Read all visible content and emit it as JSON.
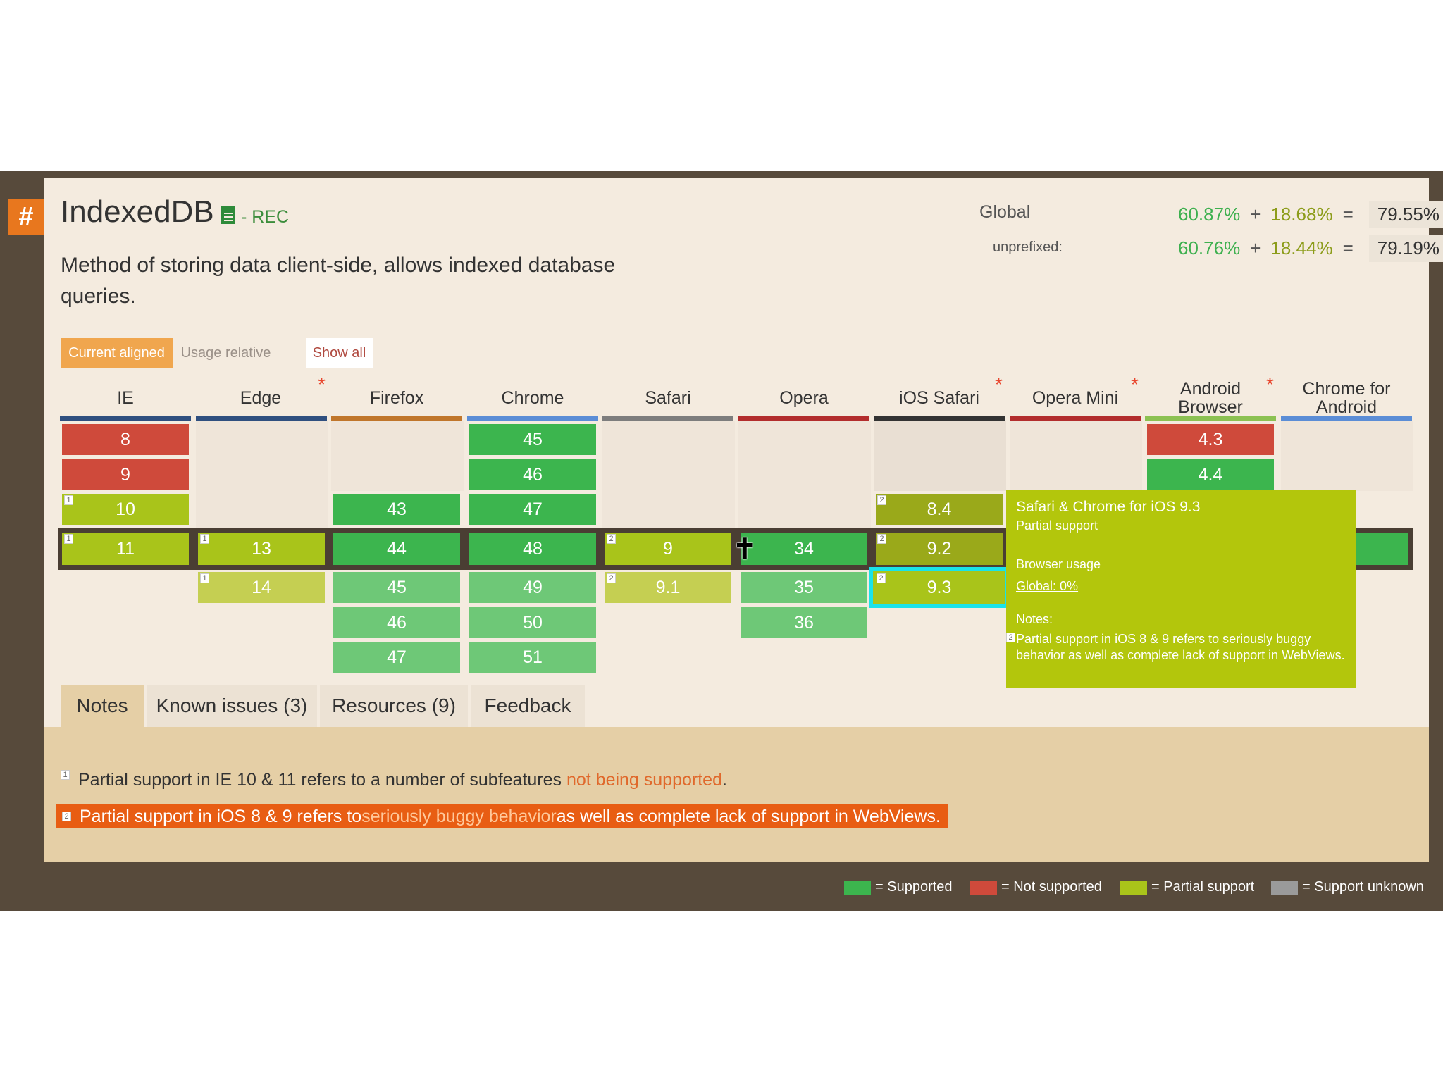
{
  "feature": {
    "anchor": "#",
    "title": "IndexedDB",
    "spec_status": "- REC",
    "description": "Method of storing data client-side, allows indexed database queries."
  },
  "usage": {
    "global_label": "Global",
    "global_supported": "60.87%",
    "global_partial": "18.68%",
    "global_total": "79.55%",
    "unprefixed_label": "unprefixed:",
    "unprefixed_supported": "60.76%",
    "unprefixed_partial": "18.44%",
    "unprefixed_total": "79.19%",
    "plus": "+",
    "equals": "="
  },
  "view_buttons": {
    "current_aligned": "Current aligned",
    "usage_relative": "Usage relative",
    "show_all": "Show all"
  },
  "browsers": [
    {
      "name": "IE",
      "color": "#2f4f7f"
    },
    {
      "name": "Edge",
      "color": "#2f4f7f",
      "star": "*"
    },
    {
      "name": "Firefox",
      "color": "#c0762b"
    },
    {
      "name": "Chrome",
      "color": "#5b8dd6"
    },
    {
      "name": "Safari",
      "color": "#7d7d7d"
    },
    {
      "name": "Opera",
      "color": "#b32d2d"
    },
    {
      "name": "iOS Safari",
      "color": "#333333",
      "star": "*"
    },
    {
      "name": "Opera Mini",
      "color": "#b32d2d",
      "star": "*"
    },
    {
      "name": "Android Browser",
      "color": "#8cc152",
      "star": "*"
    },
    {
      "name": "Chrome for Android",
      "color": "#5b8dd6"
    }
  ],
  "versions": {
    "ie": [
      "8",
      "9",
      "10",
      "11"
    ],
    "edge": [
      "13",
      "14"
    ],
    "firefox": [
      "43",
      "44",
      "45",
      "46",
      "47"
    ],
    "chrome": [
      "45",
      "46",
      "47",
      "48",
      "49",
      "50",
      "51"
    ],
    "safari": [
      "9",
      "9.1"
    ],
    "opera": [
      "34",
      "35",
      "36"
    ],
    "ios": [
      "8.4",
      "9.2",
      "9.3"
    ],
    "android": [
      "4.3",
      "4.4"
    ]
  },
  "footnote_marks": {
    "one": "1",
    "two": "2"
  },
  "tooltip": {
    "title": "Safari & Chrome for iOS 9.3",
    "status": "Partial support",
    "usage_heading": "Browser usage",
    "global_usage": "Global: 0%",
    "notes_heading": "Notes:",
    "note": "Partial support in iOS 8 & 9 refers to seriously buggy behavior as well as complete lack of support in WebViews."
  },
  "tabs": [
    "Notes",
    "Known issues (3)",
    "Resources (9)",
    "Feedback"
  ],
  "notes": {
    "note1_text": "Partial support in IE 10 & 11 refers to a number of subfeatures ",
    "note1_link": "not being supported",
    "note1_end": ".",
    "note2_text": "Partial support in iOS 8 & 9 refers to ",
    "note2_link": "seriously buggy behavior",
    "note2_end": " as well as complete lack of support in WebViews."
  },
  "legend": [
    {
      "label": "= Supported",
      "color": "#3cb54e"
    },
    {
      "label": "= Not supported",
      "color": "#cf4a3b"
    },
    {
      "label": "= Partial support",
      "color": "#a9c41a"
    },
    {
      "label": "= Support unknown",
      "color": "#9a9a9a"
    }
  ],
  "colors": {
    "supported": "#3cb54e",
    "not_supported": "#cf4a3b",
    "partial": "#a9c41a",
    "accent": "#e8771e",
    "highlight": "#1ae3e9"
  }
}
